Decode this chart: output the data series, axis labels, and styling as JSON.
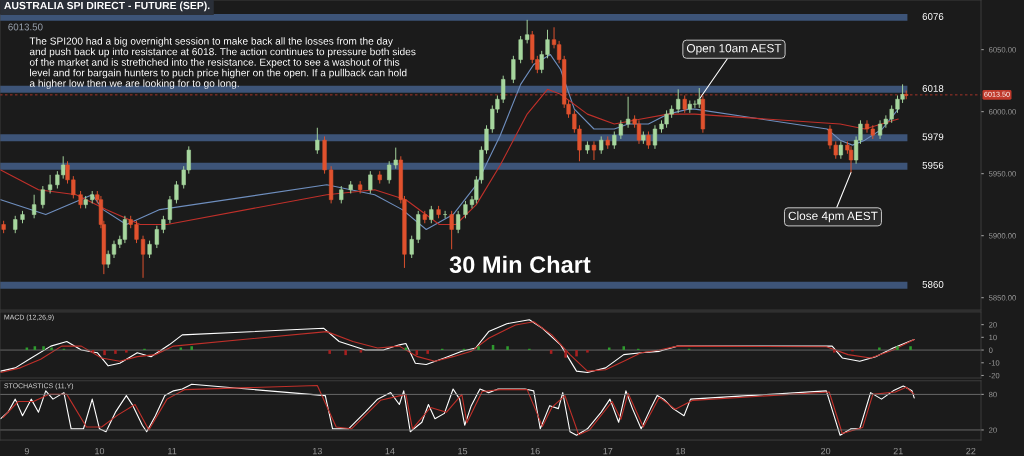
{
  "chart_data": [
    {
      "type": "candlestick",
      "title": "AUSTRALIA SPI DIRECT - FUTURE (SEP).",
      "subtitle": "6013.50",
      "x": [
        8.68,
        8.84,
        8.94,
        9.1,
        9.22,
        9.32,
        9.42,
        9.5,
        9.56,
        9.64,
        9.74,
        9.81,
        9.9,
        9.97,
        10.02,
        10.06,
        10.12,
        10.2,
        10.28,
        10.35,
        10.43,
        10.51,
        10.6,
        10.69,
        10.79,
        10.88,
        10.97,
        11.06,
        11.16,
        11.23,
        13.0,
        13.1,
        13.19,
        13.33,
        13.46,
        13.59,
        13.73,
        13.86,
        13.99,
        14.08,
        14.15,
        14.2,
        14.3,
        14.39,
        14.48,
        14.57,
        14.67,
        14.76,
        14.85,
        14.94,
        15.04,
        15.13,
        15.19,
        15.26,
        15.33,
        15.41,
        15.48,
        15.56,
        15.7,
        15.8,
        15.89,
        15.96,
        16.03,
        16.09,
        16.17,
        16.26,
        16.33,
        16.4,
        16.46,
        16.54,
        16.61,
        16.72,
        16.81,
        16.91,
        17.0,
        17.09,
        17.18,
        17.28,
        17.37,
        17.43,
        17.49,
        17.56,
        17.65,
        17.74,
        17.81,
        17.88,
        17.97,
        18.06,
        18.13,
        18.2,
        18.26,
        18.31,
        20.06,
        20.14,
        20.21,
        20.3,
        20.35,
        20.42,
        20.48,
        20.57,
        20.65,
        20.75,
        20.83,
        20.91,
        20.99,
        21.06,
        21.11
      ],
      "ohlc": [
        [
          5909,
          5912,
          5902,
          5905
        ],
        [
          5905,
          5916,
          5902,
          5913
        ],
        [
          5913,
          5920,
          5910,
          5917
        ],
        [
          5917,
          5933,
          5914,
          5925
        ],
        [
          5925,
          5940,
          5922,
          5937
        ],
        [
          5937,
          5949,
          5934,
          5941
        ],
        [
          5941,
          5952,
          5938,
          5949
        ],
        [
          5949,
          5964,
          5946,
          5957
        ],
        [
          5957,
          5960,
          5942,
          5945
        ],
        [
          5945,
          5948,
          5930,
          5933
        ],
        [
          5933,
          5936,
          5922,
          5925
        ],
        [
          5925,
          5932,
          5922,
          5929
        ],
        [
          5929,
          5936,
          5926,
          5933
        ],
        [
          5933,
          5936,
          5926,
          5929
        ],
        [
          5929,
          5932,
          5906,
          5909
        ],
        [
          5909,
          5912,
          5869,
          5877
        ],
        [
          5877,
          5888,
          5874,
          5885
        ],
        [
          5885,
          5896,
          5882,
          5893
        ],
        [
          5893,
          5900,
          5890,
          5897
        ],
        [
          5897,
          5916,
          5894,
          5913
        ],
        [
          5913,
          5916,
          5906,
          5909
        ],
        [
          5909,
          5912,
          5894,
          5897
        ],
        [
          5897,
          5900,
          5866,
          5885
        ],
        [
          5885,
          5896,
          5882,
          5893
        ],
        [
          5893,
          5908,
          5890,
          5905
        ],
        [
          5905,
          5916,
          5902,
          5913
        ],
        [
          5913,
          5932,
          5910,
          5929
        ],
        [
          5929,
          5944,
          5926,
          5941
        ],
        [
          5941,
          5956,
          5938,
          5953
        ],
        [
          5953,
          5972,
          5950,
          5969
        ],
        [
          5969,
          5987,
          5966,
          5977
        ],
        [
          5977,
          5980,
          5950,
          5953
        ],
        [
          5953,
          5956,
          5926,
          5929
        ],
        [
          5929,
          5940,
          5926,
          5937
        ],
        [
          5937,
          5944,
          5934,
          5941
        ],
        [
          5941,
          5944,
          5934,
          5937
        ],
        [
          5937,
          5952,
          5934,
          5949
        ],
        [
          5949,
          5952,
          5942,
          5945
        ],
        [
          5945,
          5960,
          5942,
          5957
        ],
        [
          5957,
          5971,
          5954,
          5961
        ],
        [
          5961,
          5964,
          5926,
          5929
        ],
        [
          5929,
          5932,
          5874,
          5885
        ],
        [
          5885,
          5900,
          5882,
          5897
        ],
        [
          5897,
          5920,
          5894,
          5917
        ],
        [
          5917,
          5920,
          5910,
          5913
        ],
        [
          5913,
          5924,
          5910,
          5921
        ],
        [
          5921,
          5924,
          5914,
          5917
        ],
        [
          5917,
          5920,
          5914,
          5917
        ],
        [
          5917,
          5920,
          5889,
          5905
        ],
        [
          5905,
          5920,
          5902,
          5917
        ],
        [
          5917,
          5928,
          5914,
          5925
        ],
        [
          5925,
          5932,
          5922,
          5929
        ],
        [
          5929,
          5948,
          5926,
          5945
        ],
        [
          5945,
          5972,
          5942,
          5969
        ],
        [
          5969,
          5989,
          5966,
          5986
        ],
        [
          5986,
          6005,
          5983,
          6002
        ],
        [
          6002,
          6013,
          5999,
          6010
        ],
        [
          6010,
          6029,
          6007,
          6026
        ],
        [
          6026,
          6045,
          6023,
          6042
        ],
        [
          6042,
          6061,
          6039,
          6058
        ],
        [
          6058,
          6074,
          6055,
          6062
        ],
        [
          6062,
          6065,
          6039,
          6042
        ],
        [
          6042,
          6045,
          6031,
          6034
        ],
        [
          6034,
          6049,
          6031,
          6046
        ],
        [
          6046,
          6066,
          6043,
          6058
        ],
        [
          6058,
          6068,
          6051,
          6054
        ],
        [
          6054,
          6057,
          6039,
          6042
        ],
        [
          6042,
          6045,
          6003,
          6006
        ],
        [
          6006,
          6009,
          5995,
          5998
        ],
        [
          5998,
          6001,
          5983,
          5986
        ],
        [
          5986,
          5989,
          5960,
          5969
        ],
        [
          5969,
          5976,
          5966,
          5973
        ],
        [
          5973,
          5976,
          5961,
          5969
        ],
        [
          5969,
          5980,
          5966,
          5977
        ],
        [
          5977,
          5980,
          5970,
          5973
        ],
        [
          5973,
          5984,
          5970,
          5981
        ],
        [
          5981,
          5993,
          5978,
          5990
        ],
        [
          5990,
          6012,
          5987,
          5994
        ],
        [
          5994,
          5997,
          5987,
          5990
        ],
        [
          5990,
          5993,
          5974,
          5977
        ],
        [
          5977,
          5984,
          5974,
          5981
        ],
        [
          5981,
          5984,
          5970,
          5973
        ],
        [
          5973,
          5989,
          5970,
          5986
        ],
        [
          5986,
          5993,
          5983,
          5990
        ],
        [
          5990,
          6001,
          5987,
          5998
        ],
        [
          5998,
          6005,
          5995,
          6002
        ],
        [
          6002,
          6018,
          5999,
          6010
        ],
        [
          6010,
          6013,
          5999,
          6002
        ],
        [
          6002,
          6009,
          5999,
          6006
        ],
        [
          6006,
          6009,
          6003,
          6006
        ],
        [
          6006,
          6019,
          6003,
          6010
        ],
        [
          6010,
          6013,
          5983,
          5986
        ],
        [
          5986,
          5989,
          5970,
          5973
        ],
        [
          5973,
          5976,
          5962,
          5965
        ],
        [
          5965,
          5976,
          5962,
          5973
        ],
        [
          5973,
          5976,
          5966,
          5969
        ],
        [
          5969,
          5972,
          5951,
          5961
        ],
        [
          5961,
          5980,
          5958,
          5977
        ],
        [
          5977,
          5993,
          5974,
          5990
        ],
        [
          5990,
          5993,
          5983,
          5986
        ],
        [
          5986,
          5989,
          5978,
          5981
        ],
        [
          5981,
          5993,
          5978,
          5990
        ],
        [
          5990,
          5997,
          5987,
          5994
        ],
        [
          5994,
          6005,
          5991,
          6002
        ],
        [
          6002,
          6013,
          5999,
          6010
        ],
        [
          6010,
          6022,
          6007,
          6014
        ],
        [
          6014,
          6017,
          6010,
          6013
        ]
      ],
      "series": [
        {
          "type": "line",
          "color": "#6f8fbf",
          "x": [
            8.64,
            9.26,
            9.9,
            10.05,
            10.37,
            10.83,
            13.13,
            13.79,
            14.17,
            14.5,
            14.87,
            15.19,
            15.52,
            15.8,
            15.98,
            16.21,
            16.35,
            16.54,
            16.81,
            17.09,
            17.28,
            17.56,
            17.83,
            18.11,
            18.2,
            20.02,
            20.2,
            20.37,
            20.54,
            20.78,
            21.0
          ],
          "values": [
            5929,
            5917,
            5933,
            5921,
            5909,
            5921,
            5941,
            5933,
            5921,
            5905,
            5917,
            5941,
            5981,
            6022,
            6038,
            6046,
            6034,
            6002,
            5986,
            5986,
            5990,
            5990,
            5998,
            6002,
            6002,
            5986,
            5977,
            5973,
            5977,
            5986,
            6002
          ]
        },
        {
          "type": "line",
          "color": "#c0302a",
          "x": [
            8.64,
            9.16,
            9.68,
            10.09,
            10.56,
            10.93,
            13.13,
            13.79,
            14.22,
            14.68,
            14.91,
            15.19,
            15.52,
            15.89,
            16.17,
            16.35,
            16.72,
            17.09,
            17.46,
            17.83,
            18.2,
            20.2,
            20.54,
            21.0
          ],
          "values": [
            5953,
            5937,
            5933,
            5921,
            5909,
            5909,
            5933,
            5937,
            5929,
            5909,
            5909,
            5925,
            5957,
            5998,
            6018,
            6014,
            5998,
            5990,
            5994,
            5998,
            5998,
            5990,
            5986,
            5994
          ]
        }
      ],
      "xlim": [
        8.63,
        22.14
      ],
      "ylim": [
        5840,
        6090
      ],
      "yticks": [
        {
          "value": 5850,
          "label": "5850.00"
        },
        {
          "value": 5900,
          "label": "5900.00"
        },
        {
          "value": 5950,
          "label": "5950.00"
        },
        {
          "value": 6000,
          "label": "6000.00"
        },
        {
          "value": 6050,
          "label": "6050.00"
        }
      ],
      "ref_lines": [
        {
          "axis": "y",
          "value": 6076,
          "label": "6076",
          "color": "#3d5478"
        },
        {
          "axis": "y",
          "value": 6018,
          "label": "6018",
          "color": "#3d5478"
        },
        {
          "axis": "y",
          "value": 5979,
          "label": "5979",
          "color": "#3d5478"
        },
        {
          "axis": "y",
          "value": 5956,
          "label": "5956",
          "color": "#3d5478"
        },
        {
          "axis": "y",
          "value": 5860,
          "label": "5860",
          "color": "#3d5478"
        },
        {
          "axis": "y",
          "value": 6013.5,
          "label": "6013.50",
          "color": "#c0392b",
          "line_style": "dashed"
        }
      ],
      "annotations": [
        "The SPI200 had a big overnight session to make back all the losses from the day\nand push back up into resistance at 6018. The action continues to pressure both sides\nof the market and is strethched into the resistance. Expect to see a washout of this\nlevel and for bargain hunters to puch price higher on the open. If a pullback can hold\na higher low then we are looking for to go long.",
        "30 Min Chart",
        {
          "text": "Open 10am AEST",
          "x": 18.26,
          "y": 6010
        },
        {
          "text": "Close 4pm AEST",
          "x": 20.35,
          "y": 5951
        }
      ],
      "tick_labels": "y"
    },
    {
      "type": "line",
      "title": "MACD (12,26,9)",
      "series": [
        {
          "type": "bar",
          "x": [
            9.0,
            9.11,
            9.23,
            9.34,
            9.51,
            9.91,
            10.07,
            10.22,
            10.37,
            10.62,
            10.82,
            11.12,
            11.27,
            13.17,
            13.39,
            13.6,
            14.22,
            14.37,
            14.52,
            14.72,
            15.02,
            15.22,
            15.42,
            15.62,
            15.92,
            16.22,
            16.42,
            16.57,
            16.72,
            17.02,
            17.22,
            17.42,
            18.12,
            20.12,
            20.37,
            20.74,
            20.99,
            21.17
          ],
          "values": [
            2,
            3,
            3,
            2,
            1,
            -2,
            -4,
            -3,
            -2,
            1,
            -1,
            2,
            3,
            -3,
            -4,
            -2,
            2,
            -4,
            -3,
            1,
            1,
            3,
            4,
            3,
            1,
            -3,
            -6,
            -5,
            -2,
            2,
            3,
            1,
            1,
            -2,
            -1,
            2,
            3,
            3
          ],
          "colors": [
            "#2f9a2f",
            "#2f9a2f",
            "#2f9a2f",
            "#2f9a2f",
            "#2f9a2f",
            "#a82020",
            "#a82020",
            "#a82020",
            "#a82020",
            "#2f9a2f",
            "#a82020",
            "#2f9a2f",
            "#2f9a2f",
            "#a82020",
            "#a82020",
            "#a82020",
            "#2f9a2f",
            "#a82020",
            "#a82020",
            "#2f9a2f",
            "#2f9a2f",
            "#2f9a2f",
            "#2f9a2f",
            "#2f9a2f",
            "#2f9a2f",
            "#a82020",
            "#a82020",
            "#a82020",
            "#a82020",
            "#2f9a2f",
            "#2f9a2f",
            "#2f9a2f",
            "#2f9a2f",
            "#a82020",
            "#a82020",
            "#2f9a2f",
            "#2f9a2f",
            "#2f9a2f"
          ]
        },
        {
          "type": "line",
          "color": "#ffffff",
          "x": [
            8.64,
            8.84,
            9.06,
            9.33,
            9.55,
            9.75,
            9.97,
            10.12,
            10.28,
            10.52,
            10.71,
            10.96,
            11.14,
            13.09,
            13.3,
            13.66,
            13.91,
            14.13,
            14.22,
            14.35,
            14.5,
            14.75,
            14.99,
            15.18,
            15.36,
            15.61,
            15.92,
            16.1,
            16.35,
            16.57,
            16.72,
            16.97,
            17.22,
            17.46,
            17.71,
            17.96,
            18.2,
            20.09,
            20.23,
            20.47,
            20.69,
            20.93,
            21.15,
            21.22
          ],
          "values": [
            -16.6,
            -14.0,
            -6.2,
            3.1,
            6.7,
            0,
            -2.1,
            -12.4,
            -10.4,
            -2.1,
            -5.2,
            4.1,
            11.9,
            17.1,
            6.7,
            0,
            0,
            4.1,
            5.2,
            -10.4,
            -11.4,
            -6.2,
            -1.0,
            1.6,
            14.5,
            20.7,
            23.8,
            17.1,
            4.1,
            -16.6,
            -17.6,
            -14.0,
            -3.6,
            -2.1,
            -1.0,
            3.1,
            3.1,
            3.1,
            -6.2,
            -8.8,
            -5.2,
            1.6,
            6.7,
            8.3
          ]
        },
        {
          "type": "line",
          "color": "#c0302a",
          "x": [
            8.64,
            8.91,
            9.19,
            9.48,
            9.75,
            10.03,
            10.28,
            10.52,
            10.77,
            11.02,
            13.13,
            13.49,
            13.83,
            14.13,
            14.38,
            14.62,
            14.87,
            15.12,
            15.36,
            15.73,
            15.98,
            16.23,
            16.48,
            16.72,
            16.97,
            17.22,
            17.46,
            17.71,
            17.96,
            20.01,
            20.31,
            20.62,
            20.93,
            21.22
          ],
          "values": [
            -17.6,
            -14.0,
            -7.3,
            3.1,
            3.1,
            -6.2,
            -8.8,
            -5.2,
            -3.6,
            3.1,
            14.5,
            6.7,
            1.6,
            3.1,
            -5.2,
            -8.8,
            -5.2,
            -1.0,
            9.3,
            19.7,
            22.3,
            11.9,
            -3.6,
            -16.6,
            -15.5,
            -8.8,
            -2.1,
            0,
            3.1,
            2.6,
            -3.6,
            -6.2,
            0,
            8.3
          ]
        }
      ],
      "xlim": [
        8.63,
        22.14
      ],
      "ylim": [
        -22,
        30
      ],
      "yticks": [
        -20,
        -10,
        0,
        10,
        20
      ],
      "ref_lines": [
        {
          "axis": "y",
          "value": 0,
          "color": "#777777"
        }
      ],
      "tick_labels": "y"
    },
    {
      "type": "line",
      "title": "STOCHASTICS (11,Y)",
      "series": [
        {
          "type": "line",
          "color": "#ffffff",
          "x": [
            8.64,
            8.74,
            8.84,
            8.94,
            9.06,
            9.16,
            9.26,
            9.36,
            9.51,
            9.61,
            9.78,
            9.9,
            10.0,
            10.09,
            10.22,
            10.37,
            10.46,
            10.59,
            10.65,
            10.77,
            10.9,
            11.02,
            11.14,
            11.27,
            13.11,
            13.21,
            13.43,
            13.66,
            13.83,
            14.01,
            14.13,
            14.19,
            14.28,
            14.44,
            14.53,
            14.62,
            14.75,
            14.87,
            14.96,
            15.03,
            15.12,
            15.24,
            15.36,
            15.49,
            15.67,
            15.86,
            15.98,
            16.07,
            16.2,
            16.32,
            16.38,
            16.48,
            16.57,
            16.72,
            16.91,
            17.03,
            17.15,
            17.25,
            17.34,
            17.46,
            17.59,
            17.68,
            17.77,
            17.9,
            18.05,
            18.14,
            20.01,
            20.2,
            20.35,
            20.47,
            20.62,
            20.77,
            20.93,
            21.07,
            21.19,
            21.22
          ],
          "values": [
            39,
            50,
            72,
            44,
            72,
            50,
            86,
            72,
            83,
            22,
            22,
            72,
            22,
            17,
            50,
            78,
            61,
            28,
            17,
            44,
            78,
            86,
            89,
            97,
            78,
            22,
            22,
            50,
            72,
            83,
            63,
            86,
            17,
            33,
            63,
            39,
            48,
            89,
            72,
            28,
            61,
            89,
            83,
            89,
            89,
            89,
            86,
            22,
            61,
            56,
            83,
            17,
            11,
            22,
            50,
            72,
            33,
            86,
            56,
            22,
            56,
            78,
            72,
            56,
            44,
            72,
            86,
            11,
            22,
            22,
            83,
            72,
            86,
            94,
            86,
            74
          ]
        },
        {
          "type": "line",
          "color": "#c0302a",
          "x": [
            8.67,
            8.88,
            9.09,
            9.3,
            9.55,
            9.82,
            10.03,
            10.25,
            10.49,
            10.68,
            10.93,
            11.17,
            13.0,
            13.26,
            13.47,
            13.87,
            14.22,
            14.31,
            14.56,
            14.78,
            14.99,
            15.06,
            15.27,
            15.52,
            15.89,
            16.1,
            16.23,
            16.41,
            16.6,
            16.75,
            17.06,
            17.18,
            17.28,
            17.49,
            17.71,
            17.93,
            18.17,
            20.05,
            20.23,
            20.51,
            20.65,
            20.96,
            21.11,
            21.22
          ],
          "values": [
            41,
            68,
            68,
            80,
            80,
            25,
            25,
            45,
            63,
            20,
            72,
            88,
            95,
            25,
            22,
            70,
            80,
            22,
            58,
            50,
            80,
            32,
            85,
            88,
            88,
            26,
            58,
            78,
            12,
            20,
            68,
            38,
            82,
            25,
            75,
            55,
            70,
            84,
            14,
            24,
            80,
            84,
            92,
            80
          ]
        }
      ],
      "xlim": [
        8.63,
        22.14
      ],
      "xticks": [
        9,
        10,
        11,
        13,
        14,
        15,
        16,
        17,
        18,
        20,
        21,
        22
      ],
      "ylim": [
        3,
        103
      ],
      "yticks": [
        20,
        80
      ],
      "ref_lines": [
        {
          "axis": "y",
          "value": 80,
          "color": "#777777"
        },
        {
          "axis": "y",
          "value": 20,
          "color": "#777777"
        }
      ]
    }
  ]
}
